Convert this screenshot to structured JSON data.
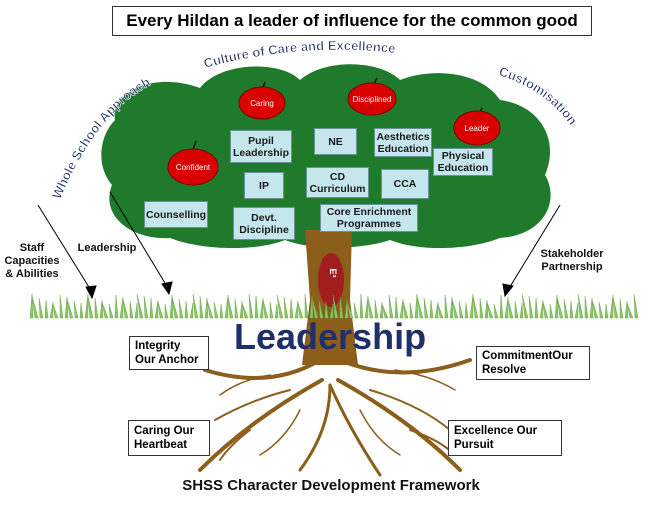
{
  "title": "Every Hildan a leader of influence for the common good",
  "arc_left": "Whole School Approach",
  "arc_top": "Culture of Care and Excellence",
  "arc_right": "Customisation",
  "fruits": [
    "Caring",
    "Disciplined",
    "Leader",
    "Confident"
  ],
  "programmes": {
    "pupil_leadership": "Pupil Leadership",
    "ne": "NE",
    "aesthetics": "Aesthetics Education",
    "physical": "Physical Education",
    "ip": "IP",
    "cd_curriculum": "CD Curriculum",
    "cca": "CCA",
    "counselling": "Counselling",
    "devt_discipline": "Devt. Discipline",
    "core_enrichment": "Core Enrichment Programmes"
  },
  "trunk_label": "E³",
  "side_labels": {
    "staff": "Staff Capacities & Abilities",
    "leadership_small": "Leadership",
    "stakeholder": "Stakeholder Partnership"
  },
  "ground_label": "Leadership",
  "roots": {
    "integrity": "Integrity Our Anchor",
    "commitment": "CommitmentOur Resolve",
    "caring": "Caring Our Heartbeat",
    "excellence": "Excellence Our Pursuit"
  },
  "footer": "SHSS Character Development Framework",
  "colors": {
    "canopy": "#1f7a2b",
    "trunk": "#8b5e1a",
    "fruit": "#d80000",
    "tile": "#c6e6ee",
    "heading_blue": "#1e2f6b",
    "grass": "#8cc763"
  }
}
